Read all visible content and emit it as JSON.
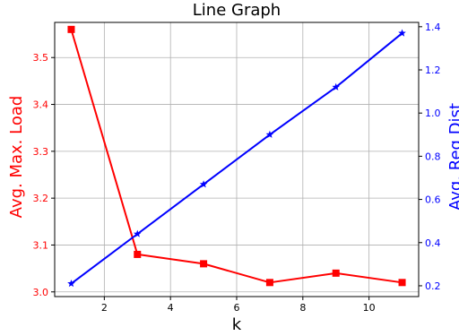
{
  "chart_data": {
    "type": "line",
    "title": "Line Graph",
    "xlabel": "k",
    "ylabel_left": "Avg. Max. Load",
    "ylabel_right": "Avg. Req Dist",
    "x": [
      1,
      3,
      5,
      7,
      9,
      11
    ],
    "xlim": [
      0.5,
      11.5
    ],
    "ylim_left": [
      2.99,
      3.575
    ],
    "ylim_right": [
      0.15,
      1.42
    ],
    "xticks": [
      2,
      4,
      6,
      8,
      10
    ],
    "yticks_left": [
      3.0,
      3.1,
      3.2,
      3.3,
      3.4,
      3.5
    ],
    "yticks_right": [
      0.2,
      0.4,
      0.6,
      0.8,
      1.0,
      1.2,
      1.4
    ],
    "grid": true,
    "series": [
      {
        "axis": "left",
        "color": "#ff0000",
        "marker": "square",
        "values": [
          3.56,
          3.08,
          3.06,
          3.02,
          3.04,
          3.02
        ]
      },
      {
        "axis": "right",
        "color": "#0000ff",
        "marker": "star",
        "values": [
          0.21,
          0.44,
          0.67,
          0.9,
          1.12,
          1.37
        ]
      }
    ]
  }
}
